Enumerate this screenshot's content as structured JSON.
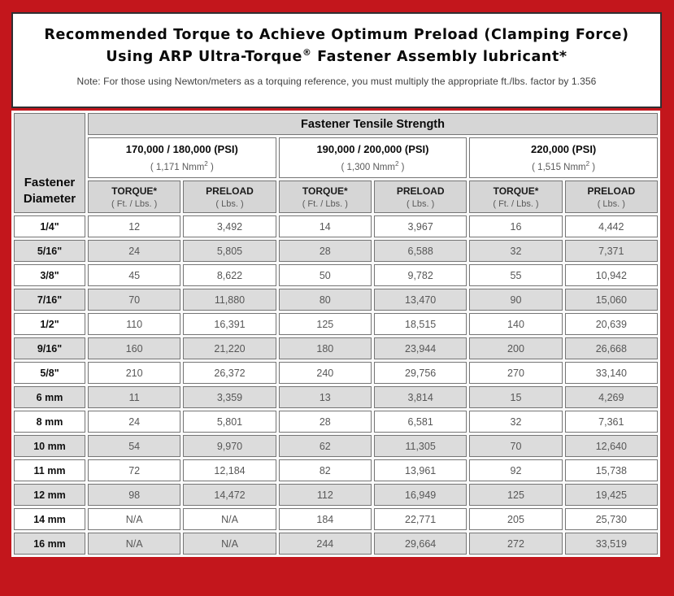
{
  "colors": {
    "frame_red": "#c3161c",
    "header_gray": "#d6d6d6",
    "row_alt_gray": "#dcdcdc",
    "cell_border": "#767676",
    "value_text": "#575757"
  },
  "title": {
    "line1": "Recommended Torque to Achieve Optimum Preload (Clamping Force)",
    "line2_pre": "Using ARP Ultra-Torque",
    "line2_sup": "®",
    "line2_post": " Fastener Assembly lubricant*"
  },
  "note": "Note: For those using Newton/meters as a torquing reference, you must multiply the appropriate ft./lbs. factor by 1.356",
  "chart_data": {
    "type": "table",
    "tensile_header": "Fastener Tensile Strength",
    "corner": {
      "line1": "Fastener",
      "line2": "Diameter"
    },
    "groups": [
      {
        "psi": "170,000 / 180,000 (PSI)",
        "nmm_pre": "( 1,171 Nmm",
        "nmm_sup": "2",
        "nmm_post": " )"
      },
      {
        "psi": "190,000 / 200,000 (PSI)",
        "nmm_pre": "( 1,300 Nmm",
        "nmm_sup": "2",
        "nmm_post": " )"
      },
      {
        "psi": "220,000 (PSI)",
        "nmm_pre": "( 1,515 Nmm",
        "nmm_sup": "2",
        "nmm_post": " )"
      }
    ],
    "subcols": {
      "torque": "TORQUE*",
      "torque_unit": "( Ft. / Lbs. )",
      "preload": "PRELOAD",
      "preload_unit": "( Lbs. )"
    },
    "rows": [
      {
        "diameter": "1/4\"",
        "values": [
          "12",
          "3,492",
          "14",
          "3,967",
          "16",
          "4,442"
        ]
      },
      {
        "diameter": "5/16\"",
        "values": [
          "24",
          "5,805",
          "28",
          "6,588",
          "32",
          "7,371"
        ]
      },
      {
        "diameter": "3/8\"",
        "values": [
          "45",
          "8,622",
          "50",
          "9,782",
          "55",
          "10,942"
        ]
      },
      {
        "diameter": "7/16\"",
        "values": [
          "70",
          "11,880",
          "80",
          "13,470",
          "90",
          "15,060"
        ]
      },
      {
        "diameter": "1/2\"",
        "values": [
          "110",
          "16,391",
          "125",
          "18,515",
          "140",
          "20,639"
        ]
      },
      {
        "diameter": "9/16\"",
        "values": [
          "160",
          "21,220",
          "180",
          "23,944",
          "200",
          "26,668"
        ]
      },
      {
        "diameter": "5/8\"",
        "values": [
          "210",
          "26,372",
          "240",
          "29,756",
          "270",
          "33,140"
        ]
      },
      {
        "diameter": "6 mm",
        "values": [
          "11",
          "3,359",
          "13",
          "3,814",
          "15",
          "4,269"
        ]
      },
      {
        "diameter": "8 mm",
        "values": [
          "24",
          "5,801",
          "28",
          "6,581",
          "32",
          "7,361"
        ]
      },
      {
        "diameter": "10 mm",
        "values": [
          "54",
          "9,970",
          "62",
          "11,305",
          "70",
          "12,640"
        ]
      },
      {
        "diameter": "11 mm",
        "values": [
          "72",
          "12,184",
          "82",
          "13,961",
          "92",
          "15,738"
        ]
      },
      {
        "diameter": "12 mm",
        "values": [
          "98",
          "14,472",
          "112",
          "16,949",
          "125",
          "19,425"
        ]
      },
      {
        "diameter": "14 mm",
        "values": [
          "N/A",
          "N/A",
          "184",
          "22,771",
          "205",
          "25,730"
        ]
      },
      {
        "diameter": "16 mm",
        "values": [
          "N/A",
          "N/A",
          "244",
          "29,664",
          "272",
          "33,519"
        ]
      }
    ]
  }
}
